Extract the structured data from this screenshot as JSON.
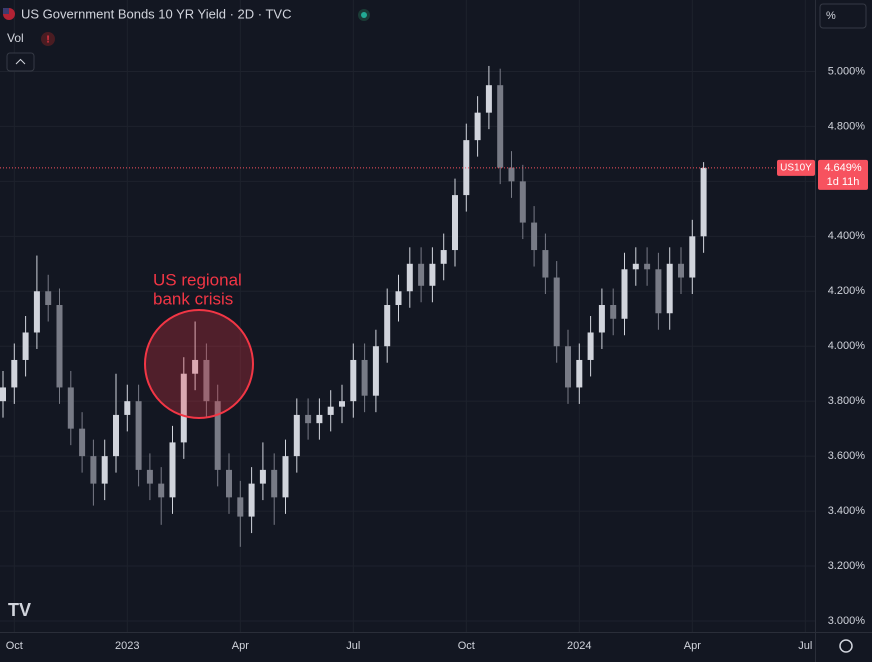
{
  "chart_data": {
    "type": "candlestick",
    "title": "US Government Bonds 10 YR Yield · 2D · TVC",
    "indicator": "Vol",
    "scale_button": "%",
    "annotation": [
      "US regional",
      "bank crisis"
    ],
    "last_symbol": "US10Y",
    "last_value": {
      "value": 4.649,
      "label": "4.649%"
    },
    "countdown": "1d 11h",
    "up_color": "#d1d4dc",
    "down_color": "#787b86",
    "grid": true,
    "ylim": [
      2.96,
      5.26
    ],
    "yticks": [
      {
        "value": 3.0,
        "label": "3.000%"
      },
      {
        "value": 3.2,
        "label": "3.200%"
      },
      {
        "value": 3.4,
        "label": "3.400%"
      },
      {
        "value": 3.6,
        "label": "3.600%"
      },
      {
        "value": 3.8,
        "label": "3.800%"
      },
      {
        "value": 4.0,
        "label": "4.000%"
      },
      {
        "value": 4.2,
        "label": "4.200%"
      },
      {
        "value": 4.4,
        "label": "4.400%"
      },
      {
        "value": 4.6,
        "label": "4.600%"
      },
      {
        "value": 4.8,
        "label": "4.800%"
      },
      {
        "value": 5.0,
        "label": "5.000%"
      }
    ],
    "categories": [
      null,
      "Oct",
      null,
      null,
      null,
      null,
      null,
      null,
      null,
      null,
      null,
      "2023",
      null,
      null,
      null,
      null,
      null,
      null,
      null,
      null,
      null,
      "Apr",
      null,
      null,
      null,
      null,
      null,
      null,
      null,
      null,
      null,
      "Jul",
      null,
      null,
      null,
      null,
      null,
      null,
      null,
      null,
      null,
      "Oct",
      null,
      null,
      null,
      null,
      null,
      null,
      null,
      null,
      null,
      "2024",
      null,
      null,
      null,
      null,
      null,
      null,
      null,
      null,
      null,
      "Apr",
      null,
      null,
      null,
      null,
      null,
      null,
      null,
      null,
      null,
      "Jul"
    ],
    "open": [
      3.8,
      3.85,
      3.95,
      4.05,
      4.2,
      4.15,
      3.85,
      3.7,
      3.6,
      3.5,
      3.6,
      3.75,
      3.8,
      3.55,
      3.5,
      3.45,
      3.65,
      3.9,
      3.95,
      3.8,
      3.55,
      3.45,
      3.38,
      3.5,
      3.55,
      3.45,
      3.6,
      3.75,
      3.72,
      3.75,
      3.78,
      3.8,
      3.95,
      3.82,
      4.0,
      4.15,
      4.2,
      4.3,
      4.22,
      4.3,
      4.35,
      4.55,
      4.75,
      4.85,
      4.95,
      4.65,
      4.6,
      4.45,
      4.35,
      4.25,
      4.0,
      3.85,
      3.95,
      4.05,
      4.15,
      4.1,
      4.28,
      4.3,
      4.28,
      4.12,
      4.3,
      4.25,
      4.4,
      null,
      null,
      null,
      null,
      null,
      null,
      null,
      null,
      null
    ],
    "high": [
      3.91,
      4.01,
      4.11,
      4.33,
      4.26,
      4.21,
      3.91,
      3.76,
      3.66,
      3.66,
      3.9,
      3.86,
      3.86,
      3.61,
      3.56,
      3.71,
      3.96,
      4.09,
      4.01,
      3.86,
      3.61,
      3.51,
      3.56,
      3.65,
      3.61,
      3.66,
      3.81,
      3.81,
      3.81,
      3.84,
      3.86,
      4.01,
      4.01,
      4.06,
      4.21,
      4.26,
      4.36,
      4.36,
      4.36,
      4.41,
      4.61,
      4.81,
      4.91,
      5.02,
      5.01,
      4.71,
      4.66,
      4.51,
      4.41,
      4.31,
      4.06,
      4.01,
      4.11,
      4.21,
      4.21,
      4.34,
      4.36,
      4.36,
      4.34,
      4.36,
      4.36,
      4.46,
      4.67,
      null,
      null,
      null,
      null,
      null,
      null,
      null,
      null,
      null
    ],
    "low": [
      3.74,
      3.79,
      3.89,
      3.99,
      4.09,
      3.79,
      3.64,
      3.54,
      3.42,
      3.44,
      3.54,
      3.69,
      3.49,
      3.44,
      3.35,
      3.39,
      3.59,
      3.84,
      3.74,
      3.49,
      3.39,
      3.27,
      3.32,
      3.44,
      3.35,
      3.39,
      3.54,
      3.66,
      3.66,
      3.69,
      3.72,
      3.74,
      3.76,
      3.76,
      3.94,
      4.09,
      4.14,
      4.16,
      4.16,
      4.24,
      4.29,
      4.49,
      4.69,
      4.79,
      4.59,
      4.54,
      4.39,
      4.29,
      4.19,
      3.94,
      3.79,
      3.79,
      3.89,
      3.99,
      4.04,
      4.04,
      4.22,
      4.22,
      4.06,
      4.06,
      4.19,
      4.19,
      4.34,
      null,
      null,
      null,
      null,
      null,
      null,
      null,
      null,
      null
    ],
    "close": [
      3.85,
      3.95,
      4.05,
      4.2,
      4.15,
      3.85,
      3.7,
      3.6,
      3.5,
      3.6,
      3.75,
      3.8,
      3.55,
      3.5,
      3.45,
      3.65,
      3.9,
      3.95,
      3.8,
      3.55,
      3.45,
      3.38,
      3.5,
      3.55,
      3.45,
      3.6,
      3.75,
      3.72,
      3.75,
      3.78,
      3.8,
      3.95,
      3.82,
      4.0,
      4.15,
      4.2,
      4.3,
      4.22,
      4.3,
      4.35,
      4.55,
      4.75,
      4.85,
      4.95,
      4.65,
      4.6,
      4.45,
      4.35,
      4.25,
      4.0,
      3.85,
      3.95,
      4.05,
      4.15,
      4.1,
      4.28,
      4.3,
      4.28,
      4.12,
      4.3,
      4.25,
      4.4,
      4.649,
      null,
      null,
      null,
      null,
      null,
      null,
      null,
      null,
      null
    ]
  }
}
